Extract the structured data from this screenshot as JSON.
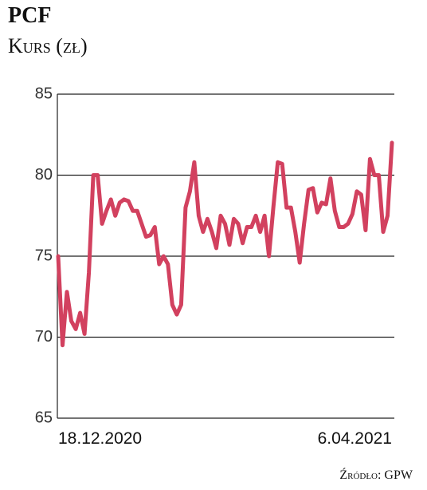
{
  "chart_data": {
    "type": "line",
    "title": "PCF",
    "subtitle": "Kurs (zł)",
    "source": "Źródło: GPW",
    "categories": [
      "18.12.2020",
      null,
      null,
      null,
      null,
      null,
      null,
      null,
      null,
      null,
      null,
      null,
      null,
      null,
      null,
      null,
      null,
      null,
      null,
      null,
      null,
      null,
      null,
      null,
      null,
      null,
      null,
      null,
      null,
      null,
      null,
      null,
      null,
      null,
      null,
      null,
      null,
      null,
      null,
      null,
      null,
      null,
      null,
      null,
      null,
      null,
      null,
      null,
      null,
      null,
      null,
      null,
      null,
      null,
      null,
      null,
      null,
      null,
      null,
      null,
      null,
      null,
      null,
      null,
      null,
      null,
      null,
      null,
      null,
      null,
      null,
      null,
      null,
      null,
      null,
      null,
      "6.04.2021"
    ],
    "series": [
      {
        "name": "PCF",
        "color": "#d2415f",
        "values": [
          75,
          69.5,
          72.8,
          71,
          70.5,
          71.5,
          70.2,
          74,
          80,
          80,
          77,
          77.8,
          78.5,
          77.5,
          78.3,
          78.5,
          78.4,
          77.8,
          77.8,
          77,
          76.2,
          76.3,
          76.8,
          74.5,
          75,
          74.5,
          72,
          71.4,
          72,
          78,
          79,
          80.8,
          77.5,
          76.5,
          77.3,
          76.5,
          75.5,
          77.5,
          77,
          75.7,
          77.3,
          77,
          75.8,
          76.8,
          76.8,
          77.5,
          76.5,
          77.5,
          75,
          78,
          80.8,
          80.7,
          78,
          78,
          76.5,
          74.6,
          77,
          79.1,
          79.2,
          77.7,
          78.3,
          78.2,
          79.8,
          77.8,
          76.8,
          76.8,
          77,
          77.6,
          79,
          78.8,
          76.6,
          81,
          80,
          80,
          76.5,
          77.5,
          82
        ]
      }
    ],
    "ylim": [
      65,
      85
    ],
    "yticks": [
      65,
      70,
      75,
      80,
      85
    ],
    "grid": true
  }
}
